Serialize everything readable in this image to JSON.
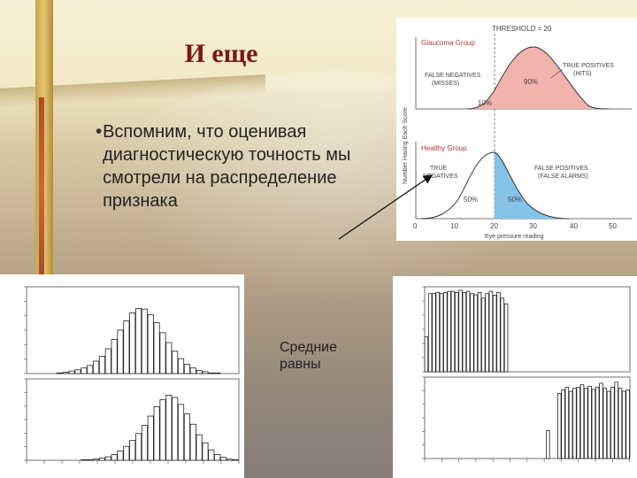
{
  "slide": {
    "title": "И еще",
    "bullets": [
      "Вспомним, что оценивая диагностическую точность мы смотрели на распределение признака"
    ],
    "bullet_glyph": "•",
    "means_label_line1": "Средние",
    "means_label_line2": "равны"
  },
  "glaucoma_figure": {
    "threshold_label": "THRESHOLD = 20",
    "ylabel": "Number Having Each Score",
    "xlabel": "Eye pressure reading",
    "top_group_label": "Glaucoma Group",
    "bottom_group_label": "Healthy Group",
    "false_negatives_label_1": "FALSE NEGATIVES",
    "false_negatives_label_2": "(MISSES)",
    "true_positives_label_1": "TRUE POSITIVES",
    "true_positives_label_2": "(HITS)",
    "true_negatives_label_1": "TRUE",
    "true_negatives_label_2": "NEGATIVES",
    "false_positives_label_1": "FALSE POSITIVES",
    "false_positives_label_2": "(FALSE ALARMS)",
    "pct_top_right": "90%",
    "pct_top_left": "10%",
    "pct_bottom_left": "50%",
    "pct_bottom_right": "50%",
    "x_ticks": [
      "0",
      "10",
      "20",
      "30",
      "40",
      "50"
    ],
    "colors": {
      "glaucoma_fill": "#f2b3ad",
      "healthy_fill": "#86c3e8",
      "curve": "#333333",
      "label": "#b43c3c"
    }
  },
  "chart_data": [
    {
      "type": "bar",
      "panel": "left-top",
      "values": [
        0,
        0,
        0,
        0,
        0,
        1,
        2,
        4,
        6,
        9,
        13,
        20,
        28,
        40,
        55,
        70,
        85,
        98,
        105,
        104,
        95,
        82,
        66,
        50,
        36,
        24,
        15,
        9,
        5,
        3,
        1,
        1,
        0,
        0,
        0
      ],
      "ylim": [
        0,
        140
      ]
    },
    {
      "type": "bar",
      "panel": "left-bottom",
      "values": [
        0,
        0,
        0,
        0,
        0,
        0,
        0,
        0,
        0,
        1,
        1,
        2,
        4,
        6,
        10,
        16,
        24,
        34,
        46,
        60,
        76,
        92,
        104,
        112,
        108,
        96,
        80,
        62,
        44,
        30,
        18,
        10,
        5,
        2,
        1
      ],
      "ylim": [
        0,
        140
      ]
    },
    {
      "type": "bar",
      "panel": "right-top",
      "values": [
        62,
        138,
        138,
        140,
        138,
        140,
        142,
        142,
        140,
        144,
        140,
        142,
        138,
        136,
        140,
        130,
        138,
        142,
        135,
        140,
        130,
        120,
        0,
        0,
        0,
        0,
        0,
        0,
        0,
        0,
        0,
        0,
        0,
        0,
        0,
        0,
        0,
        0,
        0,
        0,
        0,
        0,
        0,
        0,
        0,
        0,
        0,
        0,
        0,
        0,
        0,
        0,
        0,
        0
      ],
      "ylim": [
        0,
        150
      ]
    },
    {
      "type": "bar",
      "panel": "right-bottom",
      "values": [
        0,
        0,
        0,
        0,
        0,
        0,
        0,
        0,
        0,
        0,
        0,
        0,
        0,
        0,
        0,
        0,
        0,
        0,
        0,
        0,
        0,
        0,
        0,
        0,
        0,
        0,
        0,
        0,
        0,
        0,
        0,
        0,
        55,
        0,
        0,
        128,
        135,
        140,
        132,
        138,
        140,
        145,
        138,
        142,
        136,
        140,
        148,
        138,
        132,
        140,
        150,
        138,
        132,
        135
      ],
      "ylim": [
        0,
        160
      ]
    }
  ]
}
